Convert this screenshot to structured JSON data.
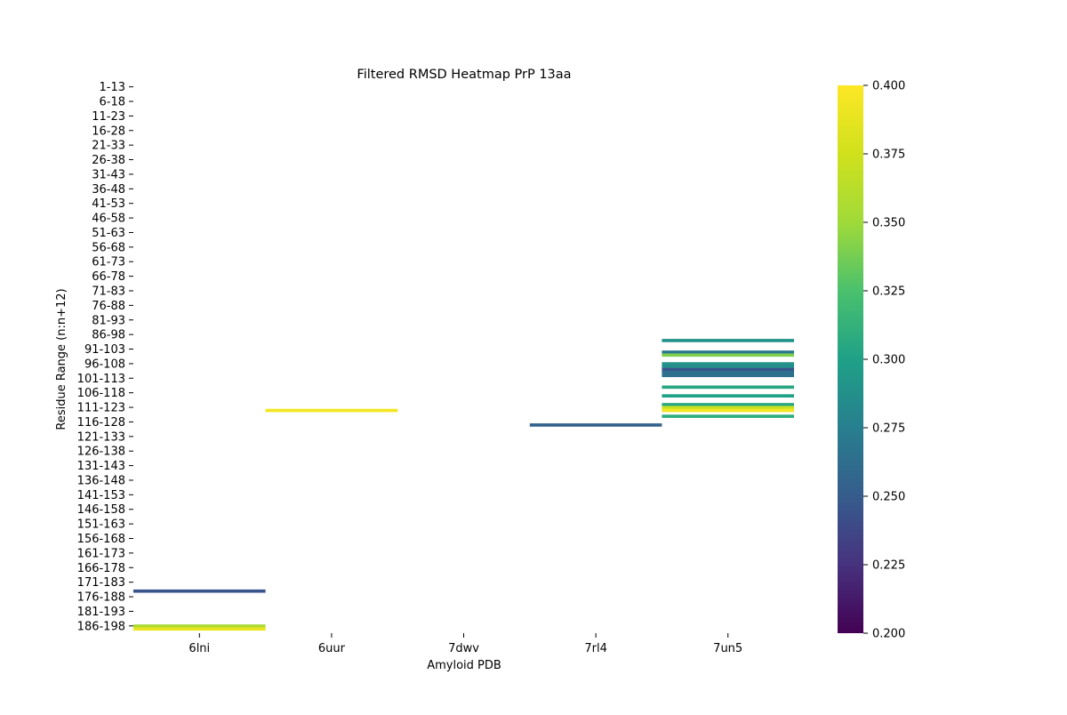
{
  "chart_data": {
    "type": "heatmap",
    "title": "Filtered RMSD Heatmap PrP 13aa",
    "xlabel": "Amyloid PDB",
    "ylabel": "Residue Range (n:n+12)",
    "columns": [
      "6lni",
      "6uur",
      "7dwv",
      "7rl4",
      "7un5"
    ],
    "row_start_first": 1,
    "row_start_last": 188,
    "row_window": 13,
    "row_count": 188,
    "y_tick_labels": [
      "1-13",
      "6-18",
      "11-23",
      "16-28",
      "21-33",
      "26-38",
      "31-43",
      "36-48",
      "41-53",
      "46-58",
      "51-63",
      "56-68",
      "61-73",
      "66-78",
      "71-83",
      "76-88",
      "81-93",
      "86-98",
      "91-103",
      "96-108",
      "101-113",
      "106-118",
      "111-123",
      "116-128",
      "121-133",
      "126-138",
      "131-143",
      "136-148",
      "141-153",
      "146-158",
      "151-163",
      "156-168",
      "161-173",
      "166-178",
      "171-183",
      "176-188",
      "181-193",
      "186-198"
    ],
    "cells": [
      {
        "column": "6lni",
        "residue_range": "174-186",
        "value": 0.245
      },
      {
        "column": "6lni",
        "residue_range": "186-198",
        "value": 0.355
      },
      {
        "column": "6lni",
        "residue_range": "187-199",
        "value": 0.39
      },
      {
        "column": "6uur",
        "residue_range": "112-124",
        "value": 0.395
      },
      {
        "column": "7rl4",
        "residue_range": "117-129",
        "value": 0.255
      },
      {
        "column": "7un5",
        "residue_range": "88-100",
        "value": 0.29
      },
      {
        "column": "7un5",
        "residue_range": "92-104",
        "value": 0.27
      },
      {
        "column": "7un5",
        "residue_range": "93-105",
        "value": 0.34
      },
      {
        "column": "7un5",
        "residue_range": "96-108",
        "value": 0.29
      },
      {
        "column": "7un5",
        "residue_range": "97-109",
        "value": 0.285
      },
      {
        "column": "7un5",
        "residue_range": "98-110",
        "value": 0.245
      },
      {
        "column": "7un5",
        "residue_range": "99-111",
        "value": 0.265
      },
      {
        "column": "7un5",
        "residue_range": "100-112",
        "value": 0.265
      },
      {
        "column": "7un5",
        "residue_range": "104-116",
        "value": 0.305
      },
      {
        "column": "7un5",
        "residue_range": "107-119",
        "value": 0.3
      },
      {
        "column": "7un5",
        "residue_range": "110-122",
        "value": 0.305
      },
      {
        "column": "7un5",
        "residue_range": "111-123",
        "value": 0.37
      },
      {
        "column": "7un5",
        "residue_range": "112-124",
        "value": 0.395
      },
      {
        "column": "7un5",
        "residue_range": "114-126",
        "value": 0.31
      }
    ],
    "colorbar": {
      "colormap": "viridis",
      "range": [
        0.2,
        0.4
      ],
      "ticks": [
        "0.200",
        "0.225",
        "0.250",
        "0.275",
        "0.300",
        "0.325",
        "0.350",
        "0.375",
        "0.400"
      ]
    },
    "grid": false,
    "legend": "colorbar-right"
  }
}
